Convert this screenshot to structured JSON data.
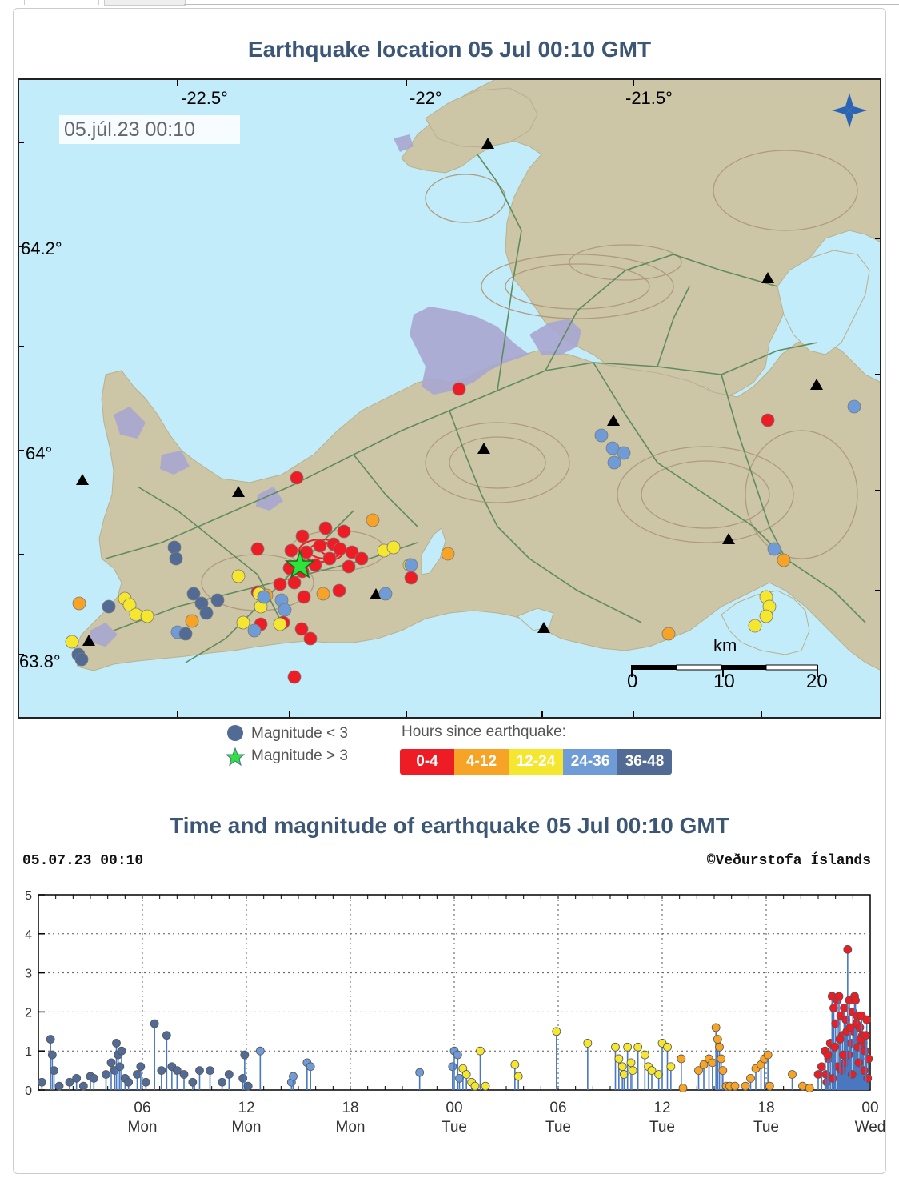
{
  "map_panel": {
    "title": "Earthquake location   05 Jul 00:10 GMT",
    "timestamp": "05.júl.23  00:10",
    "lon_labels": [
      "-22.5°",
      "-22°",
      "-21.5°"
    ],
    "lat_labels": [
      "64.2°",
      "64°",
      "63.8°"
    ],
    "scale": {
      "unit": "km",
      "ticks": [
        "0",
        "10",
        "20"
      ]
    },
    "colors": {
      "sea": "#c3ecfa",
      "land": "#cdc6a6",
      "contours": "#b09a7f",
      "roads": "#5f8b5f",
      "lava": "#a8a6d0"
    }
  },
  "legend": {
    "mag_small": "Magnitude < 3",
    "mag_large": "Magnitude > 3",
    "hours_title": "Hours since earthquake:",
    "bins": [
      {
        "label": "0-4",
        "color": "#ee1c25"
      },
      {
        "label": "4-12",
        "color": "#f7a325"
      },
      {
        "label": "12-24",
        "color": "#f5e630"
      },
      {
        "label": "24-36",
        "color": "#6f9bd6"
      },
      {
        "label": "36-48",
        "color": "#526b94"
      }
    ],
    "small_marker_color": "#526b94",
    "large_marker_color": "#2ee43c"
  },
  "time_panel": {
    "title": "Time and magnitude of earthquake   05 Jul 00:10 GMT",
    "left_label": "05.07.23 00:10",
    "right_label": "©Veðurstofa Íslands",
    "chart_data": {
      "type": "scatter",
      "ylim": [
        0,
        5
      ],
      "yticks": [
        "0",
        "1",
        "2",
        "3",
        "4",
        "5"
      ],
      "xlim_hours": [
        -48,
        0
      ],
      "xticks": [
        {
          "h": -42,
          "t": "06",
          "d": "Mon"
        },
        {
          "h": -36,
          "t": "12",
          "d": "Mon"
        },
        {
          "h": -30,
          "t": "18",
          "d": "Mon"
        },
        {
          "h": -24,
          "t": "00",
          "d": "Tue"
        },
        {
          "h": -18,
          "t": "06",
          "d": "Tue"
        },
        {
          "h": -12,
          "t": "12",
          "d": "Tue"
        },
        {
          "h": -6,
          "t": "18",
          "d": "Tue"
        },
        {
          "h": 0,
          "t": "00",
          "d": "Wed"
        }
      ],
      "series": [
        {
          "bin": "36-48",
          "points": [
            [
              -47.8,
              0.2
            ],
            [
              -47.3,
              1.3
            ],
            [
              -47.2,
              0.9
            ],
            [
              -47.1,
              0.5
            ],
            [
              -46.8,
              0.1
            ],
            [
              -46.2,
              0.2
            ],
            [
              -45.8,
              0.3
            ],
            [
              -45.4,
              0.1
            ],
            [
              -45.0,
              0.35
            ],
            [
              -44.8,
              0.3
            ],
            [
              -44.1,
              0.4
            ],
            [
              -43.8,
              0.7
            ],
            [
              -43.6,
              0.5
            ],
            [
              -43.5,
              1.2
            ],
            [
              -43.4,
              0.9
            ],
            [
              -43.3,
              0.6
            ],
            [
              -43.2,
              1.0
            ],
            [
              -43.0,
              0.3
            ],
            [
              -42.8,
              0.2
            ],
            [
              -42.3,
              0.4
            ],
            [
              -42.1,
              0.6
            ],
            [
              -41.8,
              0.2
            ],
            [
              -41.3,
              1.7
            ],
            [
              -40.9,
              0.5
            ],
            [
              -40.6,
              1.4
            ],
            [
              -40.3,
              0.6
            ],
            [
              -40.0,
              0.5
            ],
            [
              -39.6,
              0.4
            ],
            [
              -39.1,
              0.2
            ],
            [
              -38.7,
              0.5
            ],
            [
              -38.1,
              0.5
            ],
            [
              -37.4,
              0.2
            ],
            [
              -37.0,
              0.4
            ],
            [
              -36.2,
              0.3
            ],
            [
              -36.1,
              0.9
            ],
            [
              -35.9,
              0.1
            ]
          ]
        },
        {
          "bin": "24-36",
          "points": [
            [
              -35.2,
              1.0
            ],
            [
              -33.4,
              0.2
            ],
            [
              -33.3,
              0.35
            ],
            [
              -32.5,
              0.7
            ],
            [
              -32.3,
              0.6
            ],
            [
              -26.0,
              0.45
            ],
            [
              -24.1,
              0.6
            ],
            [
              -24.0,
              1.0
            ],
            [
              -23.8,
              0.9
            ],
            [
              -23.7,
              0.3
            ]
          ]
        },
        {
          "bin": "12-24",
          "points": [
            [
              -23.5,
              0.55
            ],
            [
              -23.3,
              0.4
            ],
            [
              -23.0,
              0.2
            ],
            [
              -22.8,
              0.1
            ],
            [
              -22.5,
              1.0
            ],
            [
              -22.2,
              0.1
            ],
            [
              -20.5,
              0.65
            ],
            [
              -20.3,
              0.35
            ],
            [
              -18.1,
              1.5
            ],
            [
              -16.3,
              1.2
            ],
            [
              -14.7,
              1.1
            ],
            [
              -14.5,
              0.8
            ],
            [
              -14.3,
              0.6
            ],
            [
              -14.2,
              0.4
            ],
            [
              -14.0,
              1.1
            ],
            [
              -13.8,
              0.7
            ],
            [
              -13.7,
              0.5
            ],
            [
              -13.4,
              1.1
            ],
            [
              -13.0,
              0.9
            ],
            [
              -12.8,
              0.6
            ],
            [
              -12.6,
              0.5
            ],
            [
              -12.2,
              0.4
            ],
            [
              -12.0,
              1.2
            ],
            [
              -11.7,
              1.1
            ],
            [
              -11.5,
              0.6
            ]
          ]
        },
        {
          "bin": "4-12",
          "points": [
            [
              -10.9,
              0.8
            ],
            [
              -10.8,
              0.05
            ],
            [
              -9.9,
              0.5
            ],
            [
              -9.6,
              0.65
            ],
            [
              -9.3,
              0.8
            ],
            [
              -9.1,
              0.7
            ],
            [
              -8.9,
              1.6
            ],
            [
              -8.8,
              1.3
            ],
            [
              -8.7,
              1.1
            ],
            [
              -8.6,
              0.8
            ],
            [
              -8.5,
              0.5
            ],
            [
              -8.3,
              0.1
            ],
            [
              -8.1,
              0.1
            ],
            [
              -7.8,
              0.1
            ],
            [
              -7.2,
              0.1
            ],
            [
              -6.9,
              0.3
            ],
            [
              -6.6,
              0.55
            ],
            [
              -6.3,
              0.65
            ],
            [
              -6.1,
              0.8
            ],
            [
              -5.9,
              0.9
            ],
            [
              -5.8,
              0.1
            ],
            [
              -4.5,
              0.4
            ],
            [
              -3.9,
              0.1
            ],
            [
              -3.5,
              0.05
            ]
          ]
        },
        {
          "bin": "0-4",
          "points": [
            [
              -3.0,
              0.4
            ],
            [
              -2.8,
              0.6
            ],
            [
              -2.6,
              1.0
            ],
            [
              -2.5,
              0.2
            ],
            [
              -2.4,
              0.8
            ],
            [
              -2.3,
              1.2
            ],
            [
              -2.2,
              2.4
            ],
            [
              -2.1,
              2.1
            ],
            [
              -2.0,
              1.7
            ],
            [
              -1.9,
              2.3
            ],
            [
              -1.8,
              2.4
            ],
            [
              -1.7,
              1.9
            ],
            [
              -1.6,
              1.4
            ],
            [
              -1.5,
              2.1
            ],
            [
              -1.4,
              1.8
            ],
            [
              -1.3,
              3.6
            ],
            [
              -1.2,
              2.3
            ],
            [
              -1.1,
              1.2
            ],
            [
              -1.0,
              2.0
            ],
            [
              -0.95,
              1.5
            ],
            [
              -0.9,
              2.4
            ],
            [
              -0.85,
              2.3
            ],
            [
              -0.8,
              1.7
            ],
            [
              -0.75,
              1.9
            ],
            [
              -0.7,
              1.1
            ],
            [
              -0.6,
              1.6
            ],
            [
              -0.5,
              1.9
            ],
            [
              -0.45,
              1.4
            ],
            [
              -0.4,
              1.2
            ],
            [
              -0.3,
              1.0
            ],
            [
              -0.2,
              1.8
            ],
            [
              -0.1,
              0.8
            ],
            [
              -2.55,
              0.4
            ],
            [
              -2.15,
              0.3
            ],
            [
              -1.85,
              0.6
            ],
            [
              -1.65,
              0.5
            ],
            [
              -1.45,
              0.7
            ],
            [
              -1.25,
              0.9
            ],
            [
              -1.05,
              0.4
            ],
            [
              -0.65,
              0.7
            ],
            [
              -0.35,
              0.5
            ],
            [
              -0.15,
              0.3
            ],
            [
              -2.45,
              0.9
            ],
            [
              -2.05,
              1.1
            ],
            [
              -1.75,
              1.3
            ],
            [
              -1.55,
              0.9
            ],
            [
              -1.35,
              1.5
            ],
            [
              -1.15,
              1.6
            ],
            [
              -0.55,
              1.3
            ],
            [
              -0.25,
              1.4
            ]
          ]
        }
      ]
    }
  }
}
